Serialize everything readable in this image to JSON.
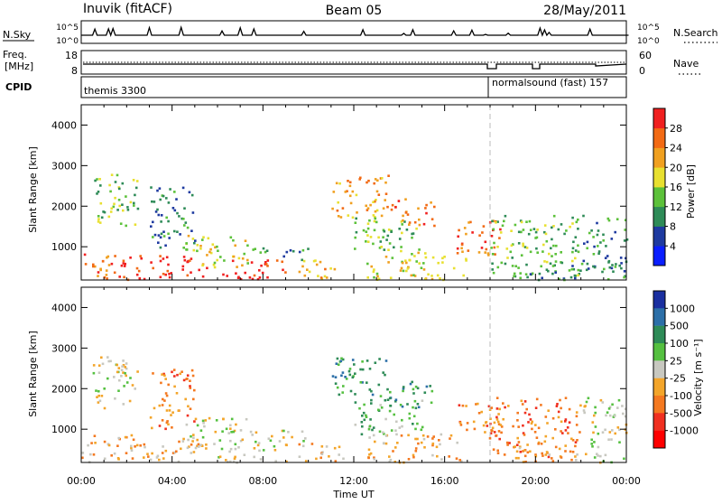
{
  "header": {
    "station": "Inuvik (fitACF)",
    "beam": "Beam 05",
    "date": "28/May/2011"
  },
  "nsky_panel": {
    "left_label": "N.Sky",
    "right_label": "N.Search",
    "left_ticks": [
      "10^5",
      "10^0"
    ],
    "right_ticks": [
      "10^5",
      "10^0"
    ]
  },
  "freq_panel": {
    "left_label_line1": "Freq.",
    "left_label_line2": "[MHz]",
    "right_label": "Nave",
    "left_ticks": [
      "18",
      "8"
    ],
    "right_ticks": [
      "60",
      "0"
    ]
  },
  "cpid_panel": {
    "label": "CPID",
    "segments": [
      {
        "name": "themis 3300",
        "start_hour": 0
      },
      {
        "name": "normalsound (fast) 157",
        "start_hour": 18
      }
    ]
  },
  "x_axis": {
    "label": "Time UT",
    "ticks": [
      "00:00",
      "04:00",
      "08:00",
      "12:00",
      "16:00",
      "20:00",
      "00:00"
    ]
  },
  "chart_data": [
    {
      "type": "heatmap",
      "title": "",
      "xlabel": "",
      "ylabel": "Slant Range [km]",
      "xlim_hours": [
        0,
        24
      ],
      "ylim_km": [
        180,
        4500
      ],
      "yticks": [
        "1000",
        "2000",
        "3000",
        "4000"
      ],
      "colorbar": {
        "label": "Power [dB]",
        "ticks": [
          "4",
          "8",
          "12",
          "16",
          "20",
          "24",
          "28"
        ],
        "colors": [
          "#0a1eff",
          "#1e3aa0",
          "#2e8b57",
          "#5cc13a",
          "#e8e030",
          "#f0a020",
          "#f26a14",
          "#f02020"
        ]
      },
      "echo_regions": [
        {
          "t": [
            0.0,
            2.5
          ],
          "r": [
            200,
            900
          ],
          "level": 6
        },
        {
          "t": [
            0.5,
            2.5
          ],
          "r": [
            1500,
            2800
          ],
          "level": 3
        },
        {
          "t": [
            2.5,
            5.5
          ],
          "r": [
            200,
            800
          ],
          "level": 7
        },
        {
          "t": [
            3.0,
            5.0
          ],
          "r": [
            1000,
            2500
          ],
          "level": 2
        },
        {
          "t": [
            4.5,
            7.5
          ],
          "r": [
            500,
            1300
          ],
          "level": 4
        },
        {
          "t": [
            6.0,
            9.0
          ],
          "r": [
            200,
            700
          ],
          "level": 7
        },
        {
          "t": [
            7.5,
            10.0
          ],
          "r": [
            700,
            1000
          ],
          "level": 2
        },
        {
          "t": [
            9.5,
            11.5
          ],
          "r": [
            200,
            700
          ],
          "level": 5
        },
        {
          "t": [
            11.0,
            13.5
          ],
          "r": [
            1700,
            2800
          ],
          "level": 5
        },
        {
          "t": [
            12.0,
            15.0
          ],
          "r": [
            900,
            1800
          ],
          "level": 3
        },
        {
          "t": [
            13.5,
            15.5
          ],
          "r": [
            1500,
            2200
          ],
          "level": 6
        },
        {
          "t": [
            12.5,
            17.0
          ],
          "r": [
            200,
            900
          ],
          "level": 4
        },
        {
          "t": [
            16.5,
            18.5
          ],
          "r": [
            800,
            1700
          ],
          "level": 6
        },
        {
          "t": [
            18.0,
            22.0
          ],
          "r": [
            300,
            1800
          ],
          "level": 3
        },
        {
          "t": [
            19.0,
            22.0
          ],
          "r": [
            200,
            600
          ],
          "level": 2
        },
        {
          "t": [
            22.0,
            24.0
          ],
          "r": [
            200,
            1800
          ],
          "level": 2
        }
      ]
    },
    {
      "type": "heatmap",
      "title": "",
      "xlabel": "Time UT",
      "ylabel": "Slant Range [km]",
      "xlim_hours": [
        0,
        24
      ],
      "ylim_km": [
        180,
        4500
      ],
      "yticks": [
        "1000",
        "2000",
        "3000",
        "4000"
      ],
      "colorbar": {
        "label": "Velocity [m s⁻¹]",
        "ticks": [
          "1000",
          "500",
          "100",
          "25",
          "-25",
          "-100",
          "-500",
          "-1000"
        ],
        "colors": [
          "#1a2fa0",
          "#2c6fa8",
          "#2e8b57",
          "#55c040",
          "#c8c8c0",
          "#f3a52a",
          "#f47920",
          "#f03020",
          "#ff0000"
        ]
      },
      "echo_regions": [
        {
          "t": [
            0.0,
            2.5
          ],
          "r": [
            200,
            900
          ],
          "level": 5
        },
        {
          "t": [
            0.5,
            2.5
          ],
          "r": [
            1500,
            2800
          ],
          "level": 4
        },
        {
          "t": [
            2.5,
            5.5
          ],
          "r": [
            200,
            800
          ],
          "level": 5
        },
        {
          "t": [
            3.0,
            5.0
          ],
          "r": [
            1000,
            2500
          ],
          "level": 6
        },
        {
          "t": [
            4.5,
            7.5
          ],
          "r": [
            500,
            1300
          ],
          "level": 4
        },
        {
          "t": [
            6.0,
            9.0
          ],
          "r": [
            200,
            700
          ],
          "level": 4
        },
        {
          "t": [
            7.5,
            10.0
          ],
          "r": [
            700,
            1000
          ],
          "level": 4
        },
        {
          "t": [
            9.5,
            11.5
          ],
          "r": [
            200,
            700
          ],
          "level": 5
        },
        {
          "t": [
            11.0,
            13.5
          ],
          "r": [
            1700,
            2800
          ],
          "level": 2
        },
        {
          "t": [
            12.0,
            15.0
          ],
          "r": [
            900,
            1800
          ],
          "level": 3
        },
        {
          "t": [
            13.5,
            15.5
          ],
          "r": [
            1500,
            2200
          ],
          "level": 2
        },
        {
          "t": [
            12.5,
            17.0
          ],
          "r": [
            200,
            900
          ],
          "level": 5
        },
        {
          "t": [
            16.5,
            18.5
          ],
          "r": [
            800,
            1700
          ],
          "level": 6
        },
        {
          "t": [
            18.0,
            22.0
          ],
          "r": [
            300,
            1800
          ],
          "level": 6
        },
        {
          "t": [
            19.0,
            22.0
          ],
          "r": [
            200,
            600
          ],
          "level": 5
        },
        {
          "t": [
            22.0,
            24.0
          ],
          "r": [
            200,
            1800
          ],
          "level": 4
        }
      ]
    }
  ]
}
